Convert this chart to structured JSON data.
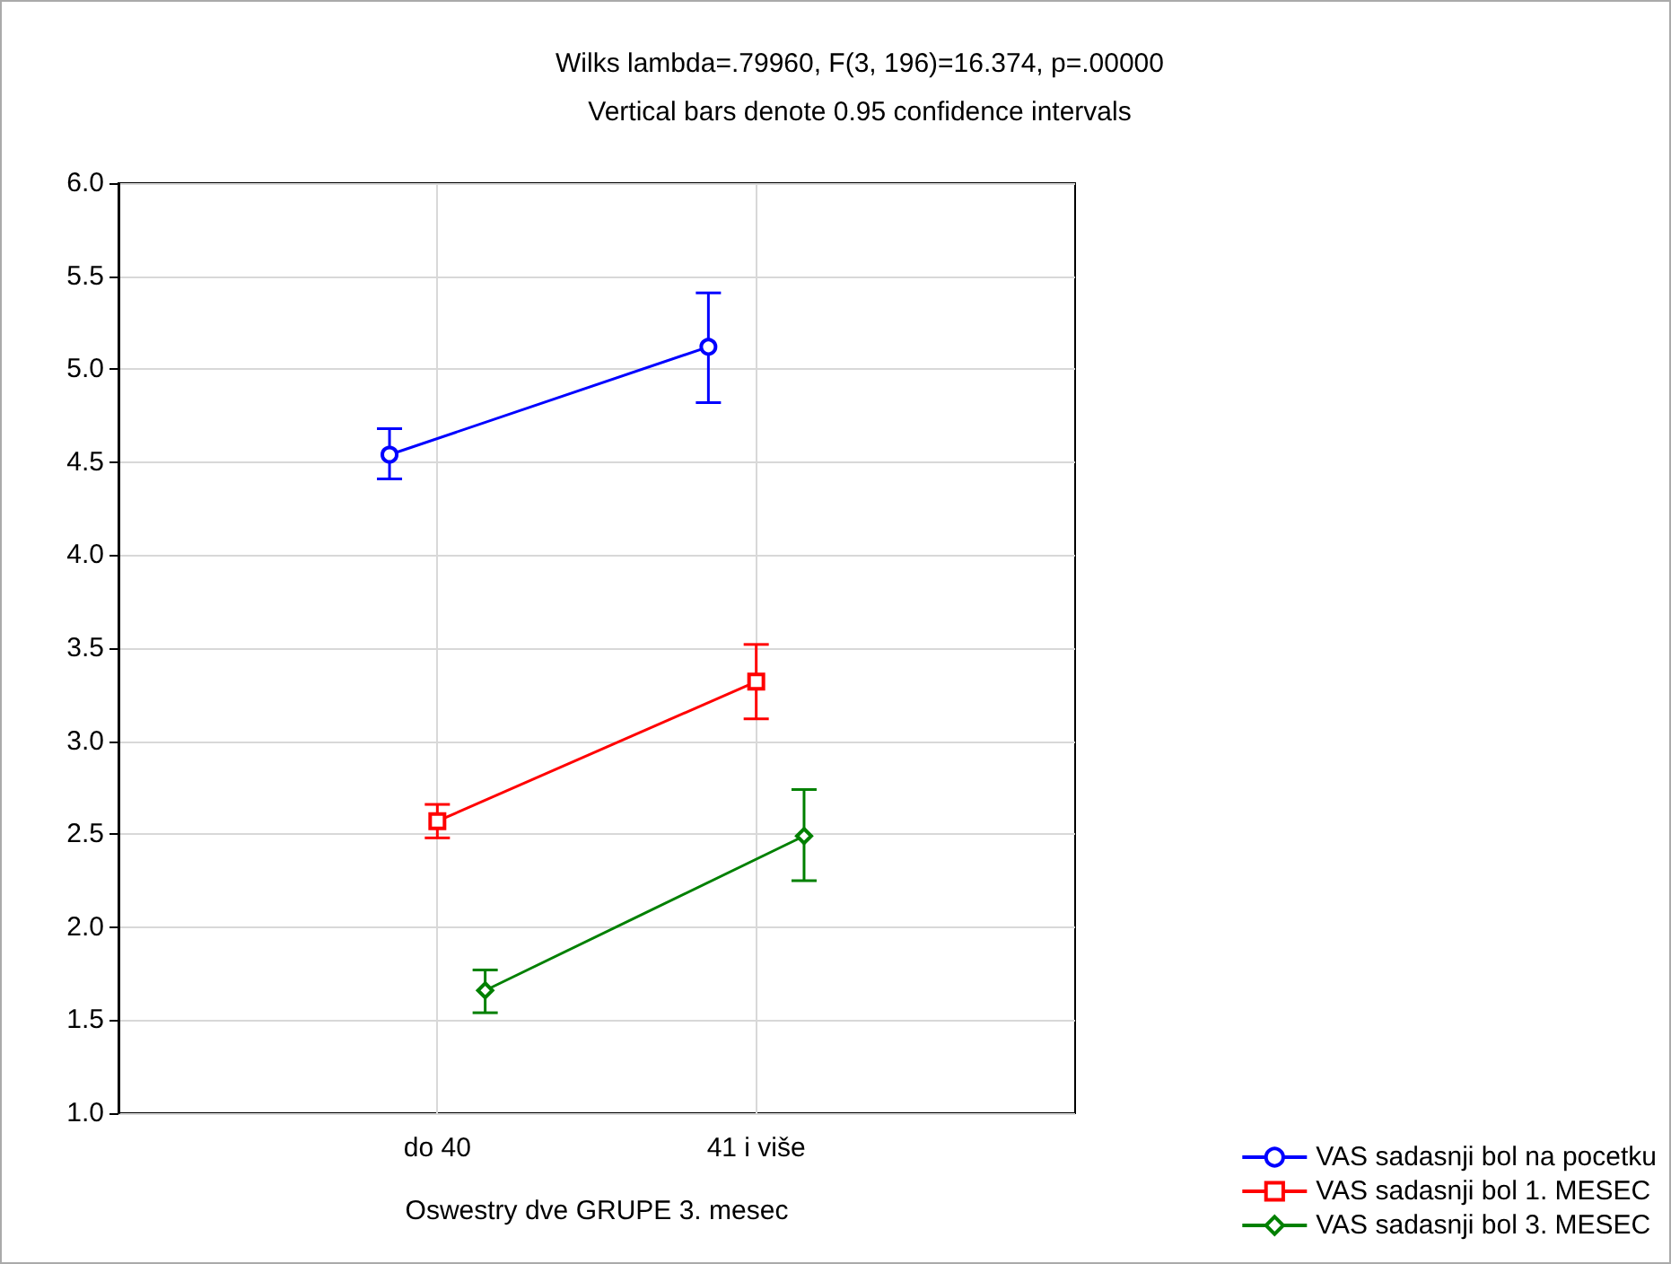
{
  "chart_data": {
    "type": "line",
    "title": "Wilks lambda=.79960, F(3, 196)=16.374, p=.00000",
    "subtitle": "Vertical bars denote 0.95 confidence intervals",
    "xlabel": "Oswestry dve GRUPE 3. mesec",
    "categories": [
      "do 40",
      "41 i više"
    ],
    "series": [
      {
        "name": "VAS sadasnji bol na pocetku",
        "color": "#0000ff",
        "marker": "circle",
        "values": [
          4.54,
          5.12
        ],
        "errors": [
          [
            4.41,
            4.68
          ],
          [
            4.82,
            5.41
          ]
        ]
      },
      {
        "name": "VAS sadasnji bol 1. MESEC",
        "color": "#ff0000",
        "marker": "square",
        "values": [
          2.57,
          3.32
        ],
        "errors": [
          [
            2.48,
            2.66
          ],
          [
            3.12,
            3.52
          ]
        ]
      },
      {
        "name": "VAS sadasnji bol 3. MESEC",
        "color": "#008000",
        "marker": "diamond",
        "values": [
          1.66,
          2.49
        ],
        "errors": [
          [
            1.54,
            1.77
          ],
          [
            2.25,
            2.74
          ]
        ]
      }
    ],
    "ylim": [
      1.0,
      6.0
    ],
    "yticks": [
      {
        "value": 1,
        "label": "1.0"
      },
      {
        "value": 1.5,
        "label": "1.5"
      },
      {
        "value": 2,
        "label": "2.0"
      },
      {
        "value": 2.5,
        "label": "2.5"
      },
      {
        "value": 3,
        "label": "3.0"
      },
      {
        "value": 3.5,
        "label": "3.5"
      },
      {
        "value": 4,
        "label": "4.0"
      },
      {
        "value": 4.5,
        "label": "4.5"
      },
      {
        "value": 5,
        "label": "5.0"
      },
      {
        "value": 5.5,
        "label": "5.5"
      },
      {
        "value": 6,
        "label": "6.0"
      }
    ],
    "grid": true,
    "legend": "bottom right",
    "line_style": "solid"
  }
}
